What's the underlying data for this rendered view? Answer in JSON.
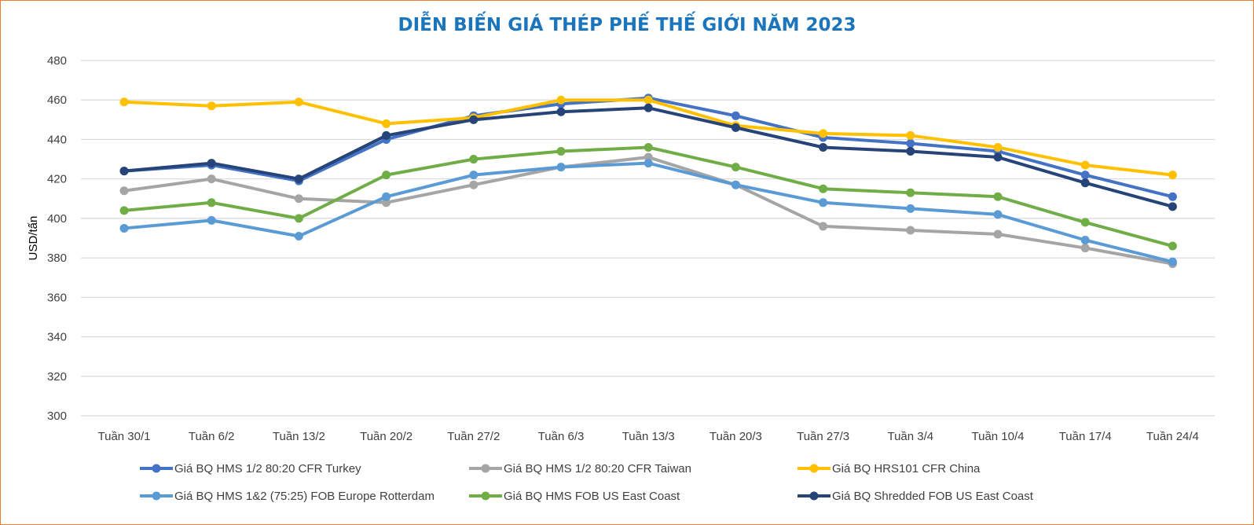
{
  "chart_data": {
    "type": "line",
    "title": "DIỄN BIẾN GIÁ THÉP PHẾ THẾ GIỚI NĂM 2023",
    "xlabel": "",
    "ylabel": "USD/tấn",
    "ylim": [
      300,
      480
    ],
    "yticks": [
      300,
      320,
      340,
      360,
      380,
      400,
      420,
      440,
      460,
      480
    ],
    "grid": true,
    "legend_position": "bottom",
    "categories": [
      "Tuần 30/1",
      "Tuần 6/2",
      "Tuần 13/2",
      "Tuần 20/2",
      "Tuần 27/2",
      "Tuần 6/3",
      "Tuần 13/3",
      "Tuần 20/3",
      "Tuần 27/3",
      "Tuần 3/4",
      "Tuần 10/4",
      "Tuần 17/4",
      "Tuần 24/4"
    ],
    "series": [
      {
        "name": "Giá BQ HMS 1/2 80:20 CFR Turkey",
        "color": "#4472c4",
        "values": [
          424,
          427,
          419,
          440,
          452,
          458,
          461,
          452,
          441,
          438,
          434,
          422,
          411
        ]
      },
      {
        "name": "Giá BQ HMS 1/2 80:20 CFR Taiwan",
        "color": "#a5a5a5",
        "values": [
          414,
          420,
          410,
          408,
          417,
          426,
          431,
          417,
          396,
          394,
          392,
          385,
          377
        ]
      },
      {
        "name": "Giá BQ HRS101 CFR China",
        "color": "#ffc000",
        "values": [
          459,
          457,
          459,
          448,
          451,
          460,
          460,
          447,
          443,
          442,
          436,
          427,
          422
        ]
      },
      {
        "name": "Giá BQ HMS 1&2 (75:25) FOB Europe Rotterdam",
        "color": "#5b9bd5",
        "values": [
          395,
          399,
          391,
          411,
          422,
          426,
          428,
          417,
          408,
          405,
          402,
          389,
          378
        ]
      },
      {
        "name": "Giá BQ HMS FOB US East Coast",
        "color": "#70ad47",
        "values": [
          404,
          408,
          400,
          422,
          430,
          434,
          436,
          426,
          415,
          413,
          411,
          398,
          386
        ]
      },
      {
        "name": "Giá BQ Shredded FOB US East Coast",
        "color": "#264478",
        "values": [
          424,
          428,
          420,
          442,
          450,
          454,
          456,
          446,
          436,
          434,
          431,
          418,
          406
        ]
      }
    ]
  }
}
